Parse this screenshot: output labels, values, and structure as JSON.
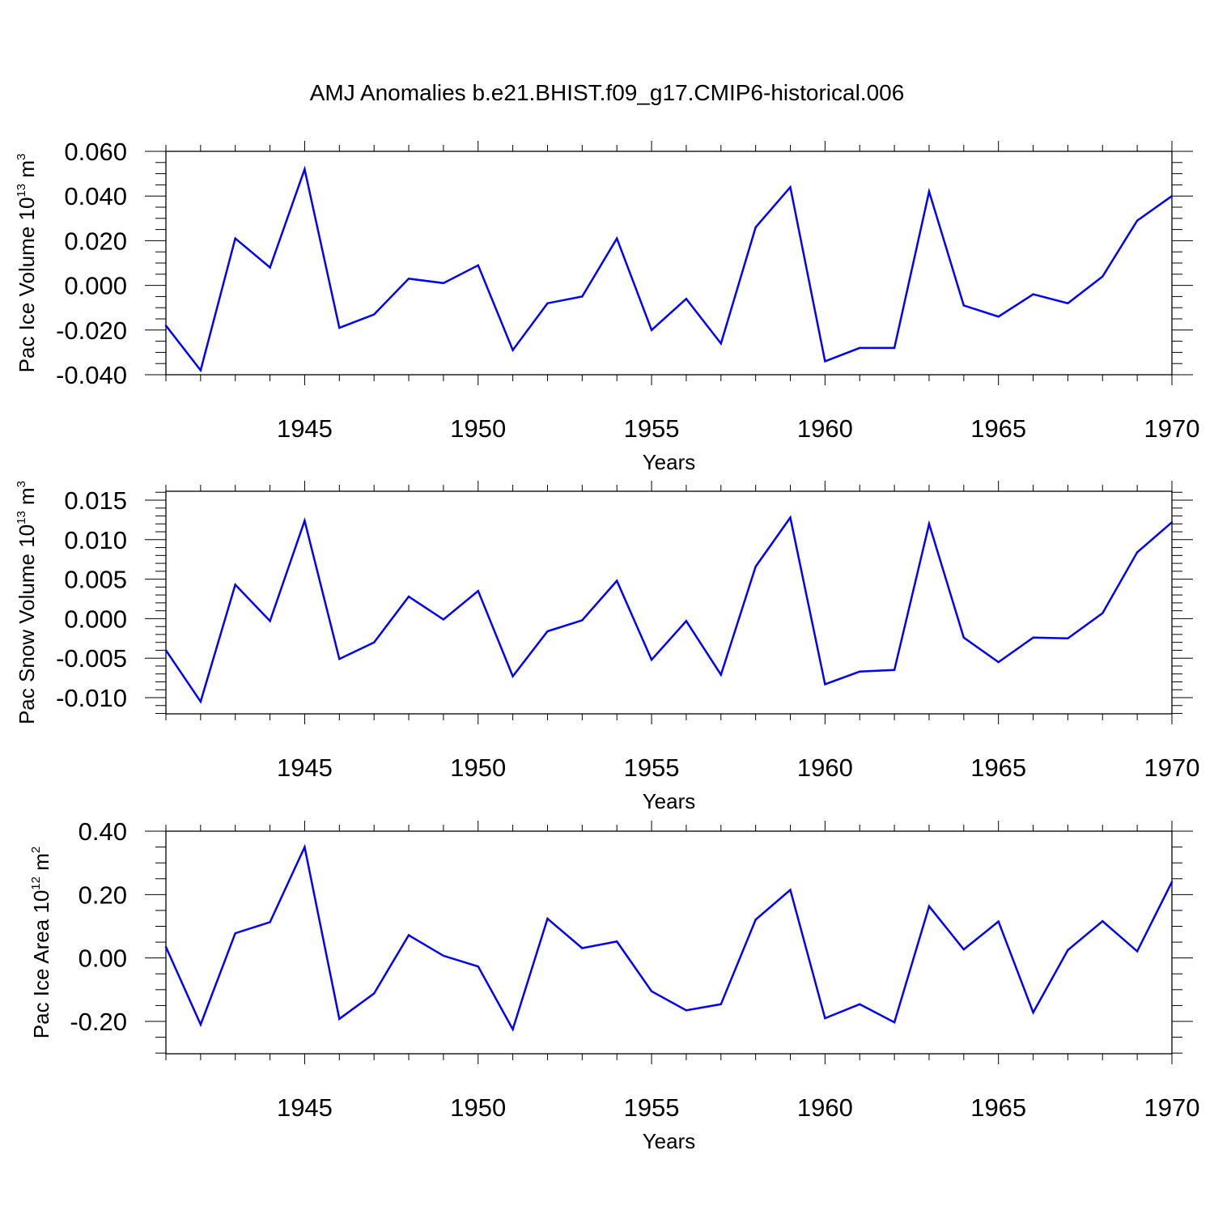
{
  "chart_data": {
    "title": "AMJ Anomalies b.e21.BHIST.f09_g17.CMIP6-historical.006",
    "panels": [
      {
        "type": "line",
        "ylabel": {
          "main": "Pac Ice Volume 10",
          "sup": "13",
          "unit": " m",
          "unit_sup": "3"
        },
        "xlabel": "Years",
        "x": [
          1941,
          1942,
          1943,
          1944,
          1945,
          1946,
          1947,
          1948,
          1949,
          1950,
          1951,
          1952,
          1953,
          1954,
          1955,
          1956,
          1957,
          1958,
          1959,
          1960,
          1961,
          1962,
          1963,
          1964,
          1965,
          1966,
          1967,
          1968,
          1969,
          1970
        ],
        "values": [
          -0.018,
          -0.038,
          0.021,
          0.008,
          0.052,
          -0.019,
          -0.013,
          0.003,
          0.001,
          0.009,
          -0.029,
          -0.008,
          -0.005,
          0.021,
          -0.02,
          -0.006,
          -0.026,
          0.026,
          0.044,
          -0.034,
          -0.028,
          -0.028,
          0.042,
          -0.009,
          -0.014,
          -0.004,
          -0.008,
          0.004,
          0.029,
          0.04
        ],
        "xlim": [
          1941,
          1970
        ],
        "ylim": [
          -0.04,
          0.06
        ],
        "yticks": [
          "0.060",
          "0.040",
          "0.020",
          "0.000",
          "-0.020",
          "-0.040"
        ],
        "ytick_values": [
          0.06,
          0.04,
          0.02,
          0.0,
          -0.02,
          -0.04
        ],
        "minor_step": 0.005
      },
      {
        "type": "line",
        "ylabel": {
          "main": "Pac Snow Volume 10",
          "sup": "13",
          "unit": " m",
          "unit_sup": "3"
        },
        "xlabel": "Years",
        "x": [
          1941,
          1942,
          1943,
          1944,
          1945,
          1946,
          1947,
          1948,
          1949,
          1950,
          1951,
          1952,
          1953,
          1954,
          1955,
          1956,
          1957,
          1958,
          1959,
          1960,
          1961,
          1962,
          1963,
          1964,
          1965,
          1966,
          1967,
          1968,
          1969,
          1970
        ],
        "values": [
          -0.004,
          -0.0105,
          0.0043,
          -0.0003,
          0.0124,
          -0.0051,
          -0.003,
          0.0028,
          -0.0001,
          0.0035,
          -0.0073,
          -0.0016,
          -0.0002,
          0.0048,
          -0.0052,
          -0.0003,
          -0.0071,
          0.0066,
          0.0128,
          -0.0083,
          -0.0067,
          -0.0065,
          0.012,
          -0.0024,
          -0.0055,
          -0.0024,
          -0.0025,
          0.0007,
          0.0084,
          0.0122
        ],
        "xlim": [
          1941,
          1970
        ],
        "ylim": [
          -0.012,
          0.016
        ],
        "yticks": [
          "0.015",
          "0.010",
          "0.005",
          "0.000",
          "-0.005",
          "-0.010"
        ],
        "ytick_values": [
          0.015,
          0.01,
          0.005,
          0.0,
          -0.005,
          -0.01
        ],
        "minor_step": 0.001
      },
      {
        "type": "line",
        "ylabel": {
          "main": "Pac Ice Area 10",
          "sup": "12",
          "unit": " m",
          "unit_sup": "2"
        },
        "xlabel": "Years",
        "x": [
          1941,
          1942,
          1943,
          1944,
          1945,
          1946,
          1947,
          1948,
          1949,
          1950,
          1951,
          1952,
          1953,
          1954,
          1955,
          1956,
          1957,
          1958,
          1959,
          1960,
          1961,
          1962,
          1963,
          1964,
          1965,
          1966,
          1967,
          1968,
          1969,
          1970
        ],
        "values": [
          0.035,
          -0.21,
          0.078,
          0.113,
          0.35,
          -0.192,
          -0.112,
          0.072,
          0.007,
          -0.027,
          -0.225,
          0.124,
          0.031,
          0.052,
          -0.105,
          -0.165,
          -0.146,
          0.121,
          0.215,
          -0.19,
          -0.146,
          -0.203,
          0.163,
          0.027,
          0.115,
          -0.172,
          0.025,
          0.116,
          0.021,
          0.24
        ],
        "xlim": [
          1941,
          1970
        ],
        "ylim": [
          -0.3,
          0.4
        ],
        "yticks": [
          "0.40",
          "0.20",
          "0.00",
          "-0.20"
        ],
        "ytick_values": [
          0.4,
          0.2,
          0.0,
          -0.2
        ],
        "minor_step": 0.05
      }
    ],
    "xticks": [
      "1945",
      "1950",
      "1955",
      "1960",
      "1965",
      "1970"
    ],
    "xtick_values": [
      1945,
      1950,
      1955,
      1960,
      1965,
      1970
    ],
    "grid": "vertical dashed at major x ticks",
    "colors": {
      "line": "#0000ff",
      "axis": "#000000",
      "grid": "#808080"
    }
  }
}
